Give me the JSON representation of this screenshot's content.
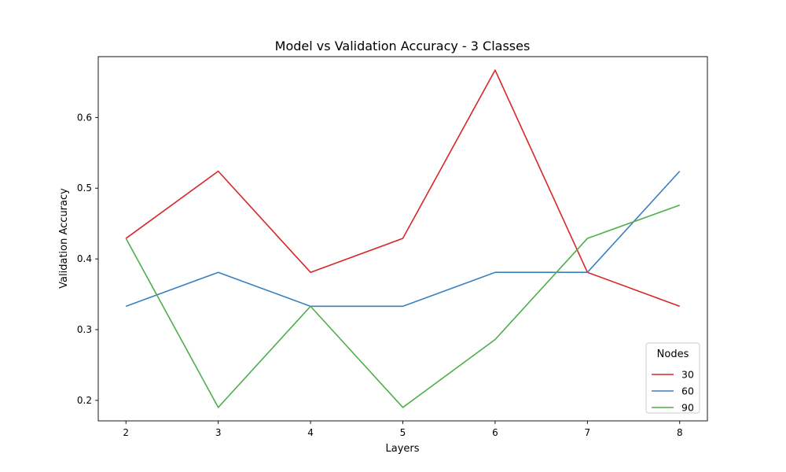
{
  "chart_data": {
    "type": "line",
    "title": "Model vs Validation Accuracy - 3 Classes",
    "xlabel": "Layers",
    "ylabel": "Validation Accuracy",
    "x": [
      2,
      3,
      4,
      5,
      6,
      7,
      8
    ],
    "xlim": [
      1.7,
      8.3
    ],
    "ylim": [
      0.171,
      0.686
    ],
    "xticks": [
      "2",
      "3",
      "4",
      "5",
      "6",
      "7",
      "8"
    ],
    "yticks": [
      "0.2",
      "0.3",
      "0.4",
      "0.5",
      "0.6"
    ],
    "grid": false,
    "legend": {
      "title": "Nodes",
      "position": "lower right"
    },
    "series": [
      {
        "name": "30",
        "color": "#d62728",
        "values": [
          0.429,
          0.524,
          0.381,
          0.429,
          0.667,
          0.381,
          0.333
        ]
      },
      {
        "name": "60",
        "color": "#3a7fbf",
        "values": [
          0.333,
          0.381,
          0.333,
          0.333,
          0.381,
          0.381,
          0.524
        ]
      },
      {
        "name": "90",
        "color": "#4daf4a",
        "values": [
          0.429,
          0.19,
          0.333,
          0.19,
          0.286,
          0.429,
          0.476
        ]
      }
    ]
  }
}
